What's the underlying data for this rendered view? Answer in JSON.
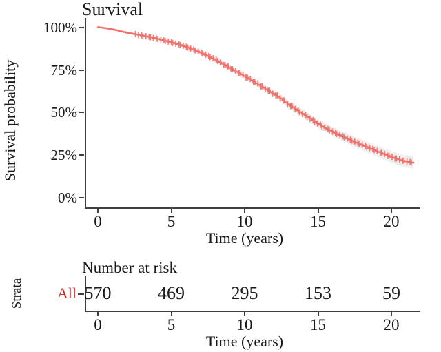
{
  "colors": {
    "curve": "#F0716B",
    "confidence_band": "#E2E2E2",
    "strata_label": "#CA2A25",
    "axis": "#3F3F3F",
    "text": "#1A1A1A",
    "background": "#FFFFFF"
  },
  "main_plot": {
    "title": "Survival",
    "ylabel": "Survival probability",
    "xlabel": "Time (years)",
    "y_ticks": [
      "100%",
      "75%",
      "50%",
      "25%",
      "0%"
    ],
    "x_ticks": [
      "0",
      "5",
      "10",
      "15",
      "20"
    ]
  },
  "risk_table": {
    "title": "Number at risk",
    "ylabel": "Strata",
    "xlabel": "Time (years)",
    "row_label": "All",
    "values": [
      "570",
      "469",
      "295",
      "153",
      "59"
    ],
    "x_ticks": [
      "0",
      "5",
      "10",
      "15",
      "20"
    ]
  },
  "chart_data": {
    "type": "line",
    "subtype": "kaplan-meier-step-curve-with-confidence-band-and-censor-marks",
    "title": "Survival",
    "xlabel": "Time (years)",
    "ylabel": "Survival probability",
    "xlim": [
      0,
      21.5
    ],
    "ylim_pct": [
      0,
      100
    ],
    "x_tick_values": [
      0,
      5,
      10,
      15,
      20
    ],
    "y_tick_values_pct": [
      100,
      75,
      50,
      25,
      0
    ],
    "grid": false,
    "legend": "none",
    "series": [
      {
        "name": "All",
        "time_years": [
          0.0,
          0.4,
          0.9,
          1.4,
          1.9,
          2.4,
          2.9,
          3.4,
          3.9,
          4.4,
          4.9,
          5.4,
          5.9,
          6.4,
          6.9,
          7.4,
          7.9,
          8.4,
          8.9,
          9.4,
          9.9,
          10.4,
          10.9,
          11.4,
          11.9,
          12.4,
          12.9,
          13.4,
          13.9,
          14.4,
          14.9,
          15.4,
          15.9,
          16.4,
          16.9,
          17.4,
          17.9,
          18.4,
          18.9,
          19.4,
          19.9,
          20.4,
          20.9,
          21.5
        ],
        "survival_pct": [
          100,
          99.5,
          98.8,
          97.8,
          96.8,
          96.0,
          95.2,
          94.4,
          93.4,
          92.3,
          91.2,
          90.0,
          88.6,
          87.0,
          85.2,
          83.2,
          81.0,
          78.6,
          76.2,
          73.8,
          71.4,
          68.8,
          66.2,
          63.6,
          61.0,
          58.2,
          54.8,
          52.0,
          49.2,
          46.4,
          43.6,
          41.0,
          38.8,
          36.7,
          34.7,
          32.8,
          31.0,
          29.2,
          27.4,
          25.7,
          24.0,
          22.5,
          21.3,
          20.4
        ],
        "ci_halfwidth_pct": [
          0.2,
          0.3,
          0.3,
          0.4,
          0.5,
          0.6,
          0.7,
          0.7,
          0.8,
          0.9,
          1.0,
          1.1,
          1.1,
          1.2,
          1.3,
          1.4,
          1.5,
          1.5,
          1.6,
          1.7,
          1.8,
          1.9,
          1.9,
          2.0,
          2.1,
          2.2,
          2.3,
          2.3,
          2.4,
          2.5,
          2.6,
          2.7,
          2.7,
          2.8,
          2.9,
          3.0,
          3.1,
          3.1,
          3.2,
          3.3,
          3.4,
          3.5,
          3.5,
          3.6
        ]
      }
    ],
    "censoring": {
      "visible": true,
      "approx_start_years": 2.6,
      "approx_end_years": 21.4,
      "approx_count": 112
    },
    "number_at_risk": {
      "strata": "All",
      "times": [
        0,
        5,
        10,
        15,
        20
      ],
      "counts": [
        570,
        469,
        295,
        153,
        59
      ]
    }
  }
}
